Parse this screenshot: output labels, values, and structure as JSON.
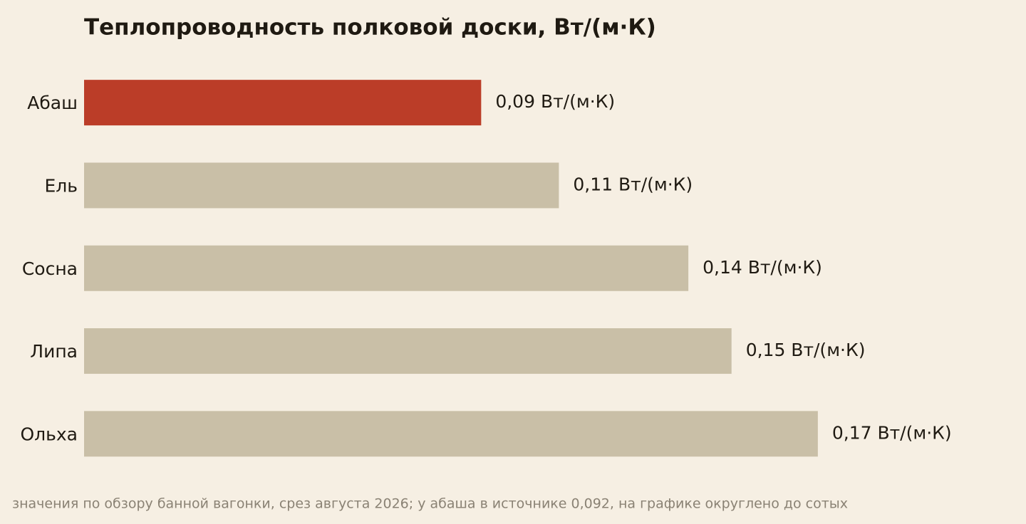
{
  "chart_data": {
    "type": "bar",
    "orientation": "horizontal",
    "title": "Теплопроводность полковой доски, Вт/(м·К)",
    "categories": [
      "Абаш",
      "Ель",
      "Сосна",
      "Липа",
      "Ольха"
    ],
    "values": [
      0.092,
      0.11,
      0.14,
      0.15,
      0.17
    ],
    "value_labels": [
      "0,09 Вт/(м·К)",
      "0,11 Вт/(м·К)",
      "0,14 Вт/(м·К)",
      "0,15 Вт/(м·К)",
      "0,17 Вт/(м·К)"
    ],
    "colors": [
      "#bb3d28",
      "#c9bfa7",
      "#c9bfa7",
      "#c9bfa7",
      "#c9bfa7"
    ],
    "xlim": [
      0,
      0.2
    ],
    "grid": false,
    "note": "значения по обзору банной вагонки, срез августа 2026; у абаша в источнике 0,092, на графике округлено до сотых"
  }
}
